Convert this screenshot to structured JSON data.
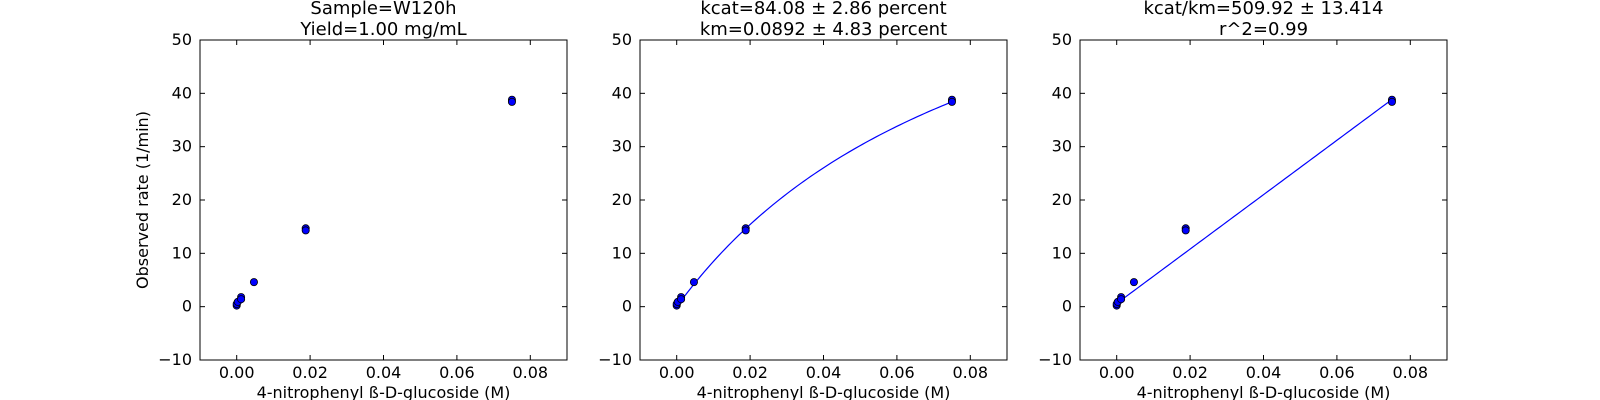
{
  "figure": {
    "background": "#ffffff"
  },
  "chart_data": [
    {
      "type": "scatter",
      "title": [
        "Sample=W120h",
        "Yield=1.00 mg/mL"
      ],
      "xlabel": "4-nitrophenyl ß-D-glucoside (M)",
      "ylabel": "Observed rate (1/min)",
      "xlim": [
        -0.01,
        0.09
      ],
      "ylim": [
        -10,
        50
      ],
      "xticks": [
        "0.00",
        "0.02",
        "0.04",
        "0.06",
        "0.08"
      ],
      "yticks": [
        "−10",
        "0",
        "10",
        "20",
        "30",
        "40",
        "50"
      ],
      "grid": false,
      "points_color": "#0000ff",
      "points": [
        {
          "x": 0.0,
          "y": 0.2
        },
        {
          "x": 0.0,
          "y": 0.5
        },
        {
          "x": 0.0003,
          "y": 0.9
        },
        {
          "x": 0.0012,
          "y": 1.8
        },
        {
          "x": 0.0012,
          "y": 1.4
        },
        {
          "x": 0.0047,
          "y": 4.6
        },
        {
          "x": 0.0188,
          "y": 14.7
        },
        {
          "x": 0.0188,
          "y": 14.3
        },
        {
          "x": 0.075,
          "y": 38.8
        },
        {
          "x": 0.075,
          "y": 38.4
        }
      ]
    },
    {
      "type": "scatter",
      "title": [
        "kcat=84.08 ± 2.86 percent",
        "km=0.0892 ± 4.83 percent"
      ],
      "xlabel": "4-nitrophenyl ß-D-glucoside (M)",
      "ylabel": "",
      "xlim": [
        -0.01,
        0.09
      ],
      "ylim": [
        -10,
        50
      ],
      "xticks": [
        "0.00",
        "0.02",
        "0.04",
        "0.06",
        "0.08"
      ],
      "yticks": [
        "−10",
        "0",
        "10",
        "20",
        "30",
        "40",
        "50"
      ],
      "grid": false,
      "points_color": "#0000ff",
      "fit": {
        "kind": "michaelis-menten",
        "kcat": 84.08,
        "km": 0.0892,
        "x_range": [
          0,
          0.075
        ],
        "color": "#0000ff"
      },
      "points": [
        {
          "x": 0.0,
          "y": 0.2
        },
        {
          "x": 0.0,
          "y": 0.5
        },
        {
          "x": 0.0003,
          "y": 0.9
        },
        {
          "x": 0.0012,
          "y": 1.8
        },
        {
          "x": 0.0012,
          "y": 1.4
        },
        {
          "x": 0.0047,
          "y": 4.6
        },
        {
          "x": 0.0188,
          "y": 14.7
        },
        {
          "x": 0.0188,
          "y": 14.3
        },
        {
          "x": 0.075,
          "y": 38.8
        },
        {
          "x": 0.075,
          "y": 38.4
        }
      ]
    },
    {
      "type": "scatter",
      "title": [
        "kcat/km=509.92 ± 13.414",
        "r^2=0.99"
      ],
      "xlabel": "4-nitrophenyl ß-D-glucoside (M)",
      "ylabel": "",
      "xlim": [
        -0.01,
        0.09
      ],
      "ylim": [
        -10,
        50
      ],
      "xticks": [
        "0.00",
        "0.02",
        "0.04",
        "0.06",
        "0.08"
      ],
      "yticks": [
        "−10",
        "0",
        "10",
        "20",
        "30",
        "40",
        "50"
      ],
      "grid": false,
      "points_color": "#0000ff",
      "fit": {
        "kind": "linear",
        "slope": 509.92,
        "intercept": 0.6,
        "x_range": [
          0,
          0.075
        ],
        "color": "#0000ff"
      },
      "points": [
        {
          "x": 0.0,
          "y": 0.2
        },
        {
          "x": 0.0,
          "y": 0.5
        },
        {
          "x": 0.0003,
          "y": 0.9
        },
        {
          "x": 0.0012,
          "y": 1.8
        },
        {
          "x": 0.0012,
          "y": 1.4
        },
        {
          "x": 0.0047,
          "y": 4.6
        },
        {
          "x": 0.0188,
          "y": 14.7
        },
        {
          "x": 0.0188,
          "y": 14.3
        },
        {
          "x": 0.075,
          "y": 38.8
        },
        {
          "x": 0.075,
          "y": 38.4
        }
      ]
    }
  ]
}
